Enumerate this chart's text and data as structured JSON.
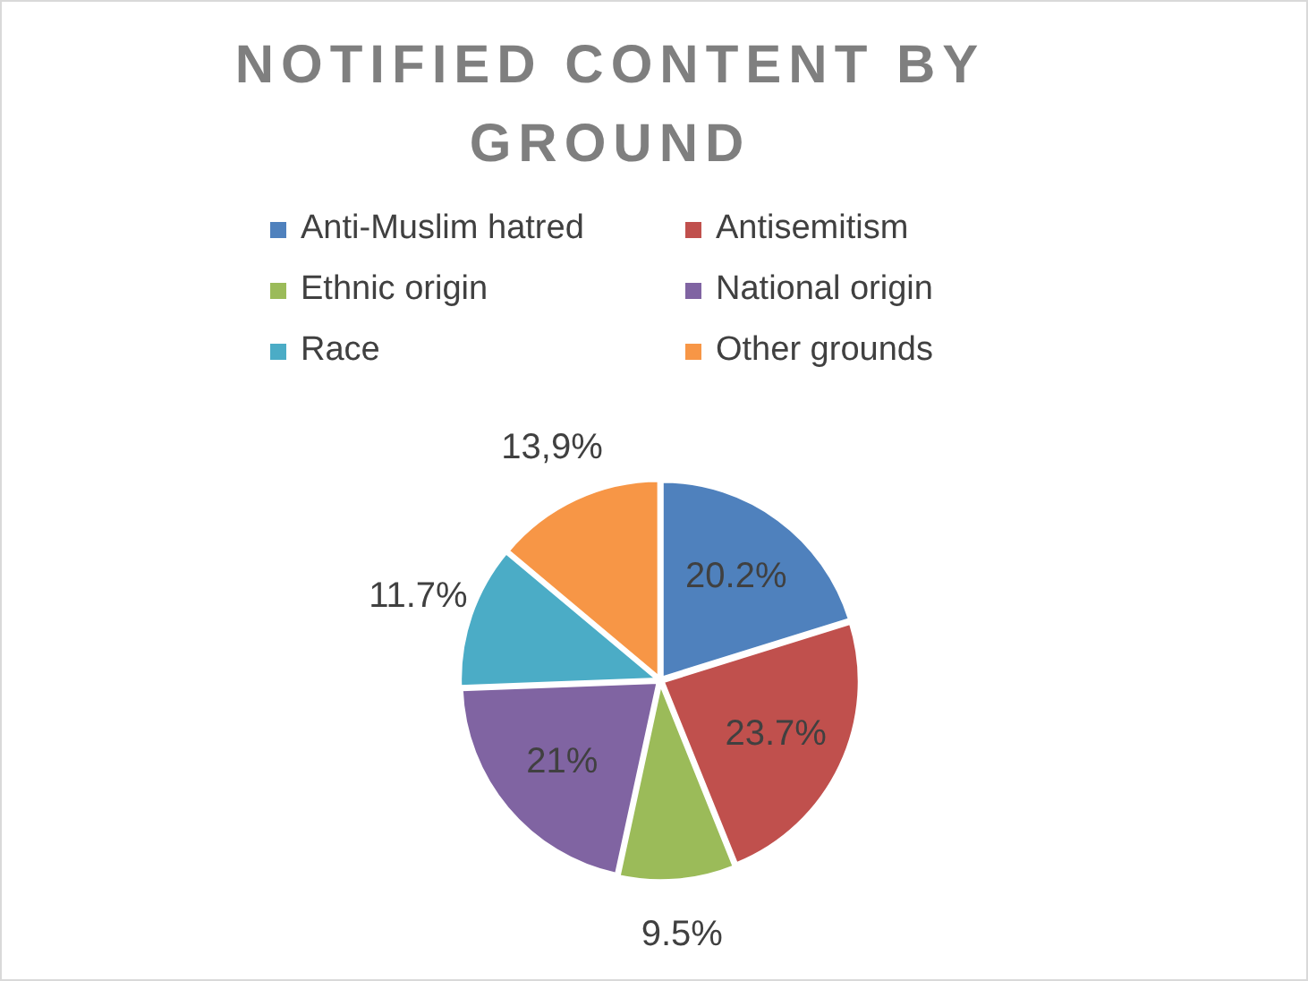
{
  "chart_data": {
    "type": "pie",
    "title": "NOTIFIED CONTENT BY GROUND",
    "categories": [
      "Anti-Muslim hatred",
      "Antisemitism",
      "Ethnic origin",
      "National origin",
      "Race",
      "Other grounds"
    ],
    "values": [
      20.2,
      23.7,
      9.5,
      21,
      11.7,
      13.9
    ],
    "value_labels": [
      "20.2%",
      "23.7%",
      "9.5%",
      "21%",
      "11.7%",
      "13,9%"
    ],
    "colors": [
      "#4f81bd",
      "#c0504d",
      "#9bbb59",
      "#8064a2",
      "#4bacc6",
      "#f79646"
    ],
    "legend": "top"
  }
}
